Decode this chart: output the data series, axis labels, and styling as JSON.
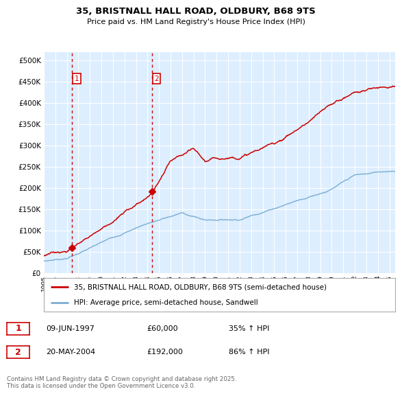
{
  "title_line1": "35, BRISTNALL HALL ROAD, OLDBURY, B68 9TS",
  "title_line2": "Price paid vs. HM Land Registry's House Price Index (HPI)",
  "legend_line1": "35, BRISTNALL HALL ROAD, OLDBURY, B68 9TS (semi-detached house)",
  "legend_line2": "HPI: Average price, semi-detached house, Sandwell",
  "footnote": "Contains HM Land Registry data © Crown copyright and database right 2025.\nThis data is licensed under the Open Government Licence v3.0.",
  "sale1_date": "09-JUN-1997",
  "sale1_price": 60000,
  "sale1_hpi": "35% ↑ HPI",
  "sale1_x": 1997.44,
  "sale2_date": "20-MAY-2004",
  "sale2_price": 192000,
  "sale2_hpi": "86% ↑ HPI",
  "sale2_x": 2004.38,
  "red_color": "#cc0000",
  "blue_color": "#7aadd4",
  "fig_bg": "#ffffff",
  "plot_bg": "#ddeeff",
  "grid_color": "#ffffff",
  "ylim_min": 0,
  "ylim_max": 520000,
  "xlim_min": 1995.0,
  "xlim_max": 2025.5,
  "yticks": [
    0,
    50000,
    100000,
    150000,
    200000,
    250000,
    300000,
    350000,
    400000,
    450000,
    500000
  ]
}
